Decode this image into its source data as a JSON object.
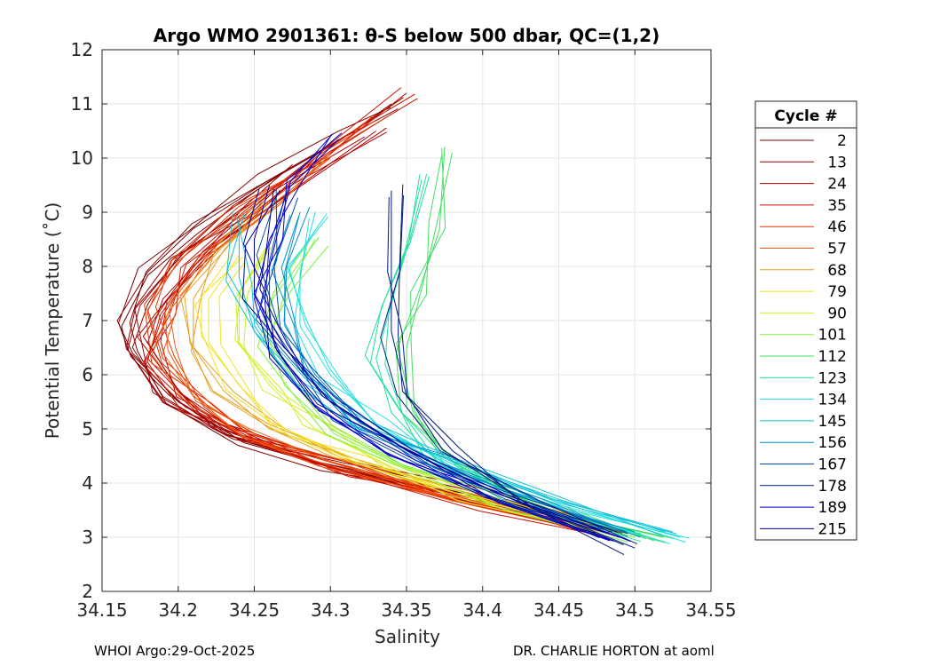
{
  "chart_data": {
    "type": "line",
    "title": "Argo WMO 2901361: θ-S below 500 dbar,  QC=(1,2)",
    "xlabel": "Salinity",
    "ylabel": "Potential Temperature (˚C)",
    "xlim": [
      34.15,
      34.55
    ],
    "ylim": [
      2,
      12
    ],
    "xticks": [
      "34.15",
      "34.2",
      "34.25",
      "34.3",
      "34.35",
      "34.4",
      "34.45",
      "34.5",
      "34.55"
    ],
    "yticks": [
      "2",
      "3",
      "4",
      "5",
      "6",
      "7",
      "8",
      "9",
      "10",
      "11",
      "12"
    ],
    "grid": true,
    "legend": {
      "title": "Cycle #",
      "location": "right-outside",
      "entries": [
        {
          "label": "2",
          "color": "#7f0000"
        },
        {
          "label": "13",
          "color": "#990000"
        },
        {
          "label": "24",
          "color": "#b30000"
        },
        {
          "label": "35",
          "color": "#cc1100"
        },
        {
          "label": "46",
          "color": "#e63300"
        },
        {
          "label": "57",
          "color": "#f05a10"
        },
        {
          "label": "68",
          "color": "#e6a020"
        },
        {
          "label": "79",
          "color": "#f2e020"
        },
        {
          "label": "90",
          "color": "#d0f020"
        },
        {
          "label": "101",
          "color": "#80f040"
        },
        {
          "label": "112",
          "color": "#40e060"
        },
        {
          "label": "123",
          "color": "#20e0a0"
        },
        {
          "label": "134",
          "color": "#20e0e0"
        },
        {
          "label": "145",
          "color": "#10c0d8"
        },
        {
          "label": "156",
          "color": "#0090d0"
        },
        {
          "label": "167",
          "color": "#0050b0"
        },
        {
          "label": "178",
          "color": "#001a80"
        },
        {
          "label": "189",
          "color": "#0000cc"
        },
        {
          "label": "215",
          "color": "#0000a0"
        }
      ]
    },
    "series": [
      {
        "name": "2",
        "x": [
          34.49,
          34.4,
          34.3,
          34.24,
          34.2,
          34.17,
          34.16,
          34.18,
          34.21,
          34.26,
          34.31,
          34.34
        ],
        "y": [
          3.1,
          3.7,
          4.3,
          4.8,
          5.5,
          6.4,
          7.0,
          7.9,
          8.7,
          9.6,
          10.4,
          11.0
        ]
      },
      {
        "name": "13",
        "x": [
          34.48,
          34.39,
          34.29,
          34.23,
          34.19,
          34.17,
          34.18,
          34.2,
          34.24,
          34.28
        ],
        "y": [
          3.2,
          3.8,
          4.4,
          4.9,
          5.6,
          6.5,
          7.3,
          8.2,
          9.0,
          9.8
        ]
      },
      {
        "name": "24",
        "x": [
          34.47,
          34.38,
          34.29,
          34.23,
          34.2,
          34.18,
          34.19,
          34.22,
          34.27,
          34.33
        ],
        "y": [
          3.2,
          3.8,
          4.4,
          5.0,
          5.7,
          6.6,
          7.4,
          8.3,
          9.3,
          10.5
        ]
      },
      {
        "name": "35",
        "x": [
          34.48,
          34.4,
          34.31,
          34.25,
          34.21,
          34.18,
          34.19,
          34.21,
          34.25,
          34.3,
          34.35
        ],
        "y": [
          3.1,
          3.6,
          4.2,
          4.8,
          5.4,
          6.3,
          7.1,
          8.0,
          9.0,
          10.1,
          11.2
        ]
      },
      {
        "name": "46",
        "x": [
          34.47,
          34.39,
          34.31,
          34.25,
          34.22,
          34.19,
          34.18,
          34.2,
          34.24,
          34.29,
          34.33
        ],
        "y": [
          3.2,
          3.7,
          4.3,
          4.8,
          5.5,
          6.3,
          7.2,
          8.1,
          9.0,
          10.0,
          10.8
        ]
      },
      {
        "name": "57",
        "x": [
          34.46,
          34.38,
          34.3,
          34.25,
          34.21,
          34.19,
          34.2,
          34.22,
          34.26,
          34.3
        ],
        "y": [
          3.3,
          3.8,
          4.4,
          4.9,
          5.6,
          6.4,
          7.3,
          8.2,
          9.1,
          10.0
        ]
      },
      {
        "name": "68",
        "x": [
          34.46,
          34.38,
          34.31,
          34.26,
          34.23,
          34.21,
          34.21,
          34.23,
          34.26
        ],
        "y": [
          3.3,
          3.9,
          4.5,
          5.0,
          5.7,
          6.5,
          7.4,
          8.3,
          9.2
        ]
      },
      {
        "name": "79",
        "x": [
          34.47,
          34.39,
          34.32,
          34.27,
          34.24,
          34.22,
          34.22,
          34.24
        ],
        "y": [
          3.2,
          3.8,
          4.4,
          5.0,
          5.8,
          6.6,
          7.4,
          8.2
        ]
      },
      {
        "name": "90",
        "x": [
          34.49,
          34.41,
          34.34,
          34.29,
          34.26,
          34.24,
          34.24,
          34.26
        ],
        "y": [
          3.0,
          3.6,
          4.3,
          5.0,
          5.8,
          6.6,
          7.5,
          8.4
        ]
      },
      {
        "name": "101",
        "x": [
          34.5,
          34.42,
          34.35,
          34.3,
          34.27,
          34.26,
          34.27,
          34.29
        ],
        "y": [
          3.0,
          3.6,
          4.3,
          5.0,
          5.8,
          6.6,
          7.5,
          8.5
        ]
      },
      {
        "name": "112",
        "x": [
          34.52,
          34.44,
          34.38,
          34.35,
          34.35,
          34.36,
          34.37,
          34.38
        ],
        "y": [
          2.9,
          3.5,
          4.4,
          5.4,
          6.5,
          7.6,
          8.8,
          10.1
        ]
      },
      {
        "name": "123",
        "x": [
          34.51,
          34.43,
          34.37,
          34.34,
          34.33,
          34.34,
          34.35,
          34.36
        ],
        "y": [
          3.0,
          3.6,
          4.4,
          5.3,
          6.3,
          7.3,
          8.4,
          9.6
        ]
      },
      {
        "name": "134",
        "x": [
          34.53,
          34.45,
          34.38,
          34.33,
          34.3,
          34.28,
          34.28,
          34.29
        ],
        "y": [
          3.0,
          3.6,
          4.3,
          5.1,
          6.0,
          6.9,
          7.9,
          9.0
        ]
      },
      {
        "name": "145",
        "x": [
          34.52,
          34.45,
          34.38,
          34.32,
          34.28,
          34.25,
          34.24,
          34.24
        ],
        "y": [
          3.1,
          3.7,
          4.4,
          5.1,
          5.9,
          6.8,
          7.8,
          8.9
        ]
      },
      {
        "name": "156",
        "x": [
          34.5,
          34.43,
          34.37,
          34.32,
          34.29,
          34.27,
          34.27,
          34.28
        ],
        "y": [
          3.1,
          3.7,
          4.4,
          5.1,
          6.0,
          6.9,
          7.9,
          9.0
        ]
      },
      {
        "name": "167",
        "x": [
          34.49,
          34.42,
          34.36,
          34.31,
          34.28,
          34.26,
          34.26,
          34.27
        ],
        "y": [
          3.0,
          3.7,
          4.4,
          5.2,
          6.1,
          7.0,
          8.1,
          9.3
        ]
      },
      {
        "name": "178",
        "x": [
          34.5,
          34.43,
          34.38,
          34.35,
          34.34,
          34.34,
          34.34
        ],
        "y": [
          2.8,
          3.6,
          4.6,
          5.6,
          6.8,
          8.0,
          9.4
        ]
      },
      {
        "name": "189",
        "x": [
          34.49,
          34.41,
          34.34,
          34.29,
          34.26,
          34.25,
          34.26,
          34.28,
          34.3
        ],
        "y": [
          3.0,
          3.7,
          4.5,
          5.4,
          6.4,
          7.4,
          8.5,
          9.5,
          10.4
        ]
      },
      {
        "name": "215",
        "x": [
          34.48,
          34.41,
          34.35,
          34.3,
          34.27,
          34.25,
          34.25,
          34.26
        ],
        "y": [
          3.1,
          3.8,
          4.6,
          5.5,
          6.5,
          7.5,
          8.5,
          9.5
        ]
      }
    ]
  },
  "footer": {
    "left": "WHOI Argo:29-Oct-2025",
    "right": "DR. CHARLIE HORTON at aoml"
  }
}
